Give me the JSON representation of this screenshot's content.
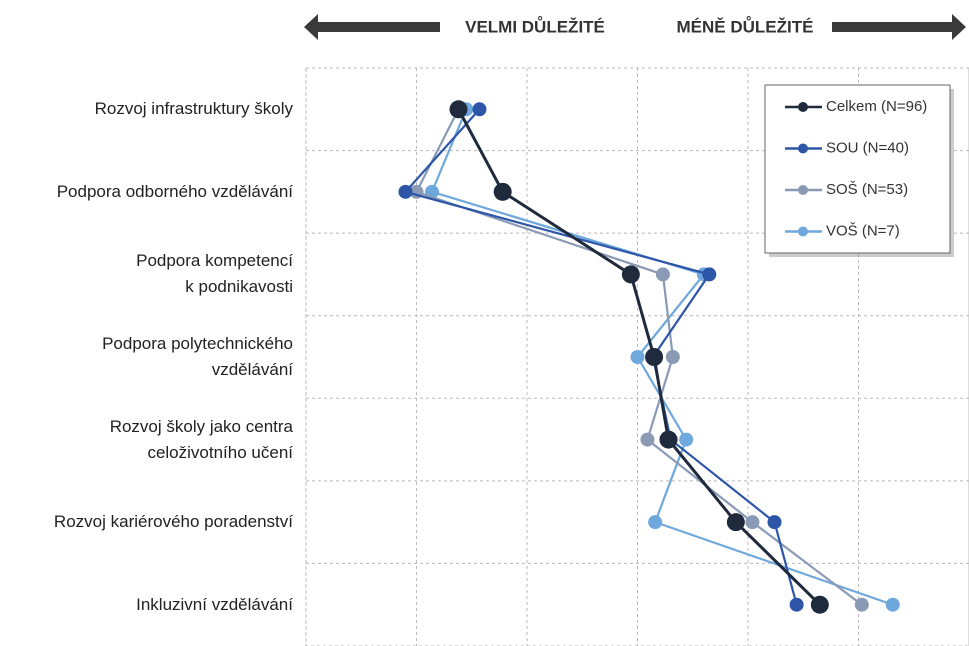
{
  "chart_data": {
    "type": "dot-line",
    "header": {
      "left": "VELMI DŮLEŽITÉ",
      "right": "MÉNĚ DŮLEŽITÉ"
    },
    "categories": [
      "Rozvoj infrastruktury školy",
      "Podpora odborného vzdělávání",
      "Podpora kompetencí\nk podnikavosti",
      "Podpora polytechnického\nvzdělávání",
      "Rozvoj školy jako centra\nceloživotního učení",
      "Rozvoj kariérového poradenství",
      "Inkluzivní vzdělávání"
    ],
    "series": [
      {
        "name": "Celkem (N=96)",
        "color": "#1f2a3c",
        "values": [
          2.38,
          2.78,
          3.94,
          4.15,
          4.28,
          4.89,
          5.65
        ]
      },
      {
        "name": "SOU (N=40)",
        "color": "#2e56a8",
        "values": [
          2.57,
          1.9,
          4.65,
          4.14,
          4.3,
          5.24,
          5.44
        ]
      },
      {
        "name": "SOŠ (N=53)",
        "color": "#8a9ab5",
        "values": [
          2.38,
          2.0,
          4.23,
          4.32,
          4.09,
          5.04,
          6.03
        ]
      },
      {
        "name": "VOŠ (N=7)",
        "color": "#6fa8dc",
        "values": [
          2.45,
          2.14,
          4.6,
          4.0,
          4.44,
          4.16,
          6.31
        ]
      }
    ],
    "xlim": [
      1,
      7
    ],
    "xticks": [
      1,
      2,
      3,
      4,
      5,
      6,
      7
    ],
    "grid": true,
    "legend": "top-right"
  }
}
